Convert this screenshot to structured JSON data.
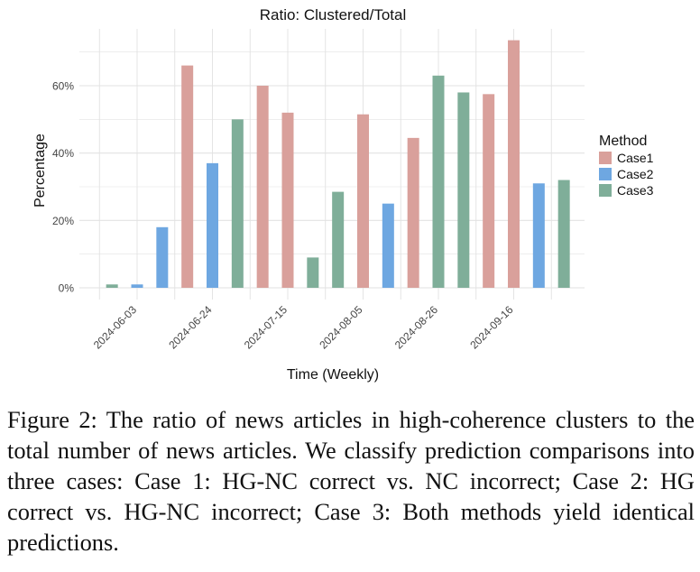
{
  "chart_data": {
    "type": "bar",
    "title": "Ratio: Clustered/Total",
    "xlabel": "Time (Weekly)",
    "ylabel": "Percentage",
    "x_tick_labels": [
      "2024-06-03",
      "2024-06-24",
      "2024-07-15",
      "2024-08-05",
      "2024-08-26",
      "2024-09-16"
    ],
    "y_tick_labels": [
      "0%",
      "20%",
      "40%",
      "60%"
    ],
    "ylim": [
      0,
      0.75
    ],
    "grid": true,
    "legend": {
      "title": "Method",
      "placement": "right"
    },
    "bars": [
      {
        "week": "2024-05-27",
        "series": "Case3",
        "value": 0.01
      },
      {
        "week": "2024-06-03",
        "series": "Case2",
        "value": 0.01
      },
      {
        "week": "2024-06-10",
        "series": "Case2",
        "value": 0.18
      },
      {
        "week": "2024-06-17",
        "series": "Case1",
        "value": 0.66
      },
      {
        "week": "2024-06-24",
        "series": "Case2",
        "value": 0.37
      },
      {
        "week": "2024-07-01",
        "series": "Case3",
        "value": 0.5
      },
      {
        "week": "2024-07-08",
        "series": "Case1",
        "value": 0.6
      },
      {
        "week": "2024-07-15",
        "series": "Case1",
        "value": 0.52
      },
      {
        "week": "2024-07-22",
        "series": "Case3",
        "value": 0.09
      },
      {
        "week": "2024-07-29",
        "series": "Case3",
        "value": 0.285
      },
      {
        "week": "2024-08-05",
        "series": "Case1",
        "value": 0.515
      },
      {
        "week": "2024-08-12",
        "series": "Case2",
        "value": 0.25
      },
      {
        "week": "2024-08-19",
        "series": "Case1",
        "value": 0.445
      },
      {
        "week": "2024-08-26",
        "series": "Case3",
        "value": 0.63
      },
      {
        "week": "2024-09-02",
        "series": "Case3",
        "value": 0.58
      },
      {
        "week": "2024-09-09",
        "series": "Case1",
        "value": 0.575
      },
      {
        "week": "2024-09-16",
        "series": "Case1",
        "value": 0.735
      },
      {
        "week": "2024-09-23",
        "series": "Case2",
        "value": 0.31
      },
      {
        "week": "2024-09-30",
        "series": "Case3",
        "value": 0.32
      }
    ],
    "series": [
      {
        "name": "Case1",
        "color": "#d9a09b"
      },
      {
        "name": "Case2",
        "color": "#6ea7e1"
      },
      {
        "name": "Case3",
        "color": "#7fae99"
      }
    ]
  },
  "caption": "Figure 2: The ratio of news articles in high-coherence clusters to the total number of news articles. We classify prediction comparisons into three cases: Case 1: HG-NC correct vs. NC incorrect; Case 2: HG correct vs. HG-NC incorrect; Case 3: Both methods yield identical predictions."
}
